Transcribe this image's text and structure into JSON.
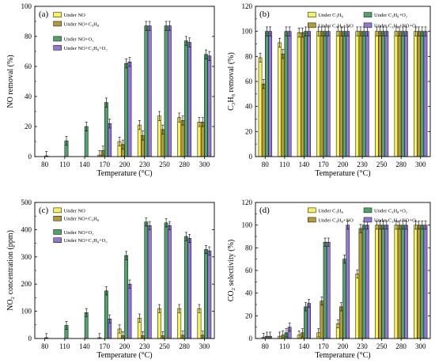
{
  "colors": {
    "yellow": "#f7f15a",
    "brown": "#b59a3a",
    "green": "#52a36b",
    "purple": "#9478d8"
  },
  "chart_data": [
    {
      "type": "bar",
      "letter": "(a)",
      "xlabel": "Temperature (°C)",
      "ylabel": "NO removal (%)",
      "ylim": [
        0,
        100
      ],
      "yticks": [
        "0",
        "20",
        "40",
        "60",
        "80",
        "100"
      ],
      "categories": [
        "80",
        "110",
        "140",
        "170",
        "200",
        "230",
        "250",
        "280",
        "300"
      ],
      "legend_position": "top-left",
      "series": [
        {
          "name": "Under NO",
          "color": "yellow",
          "values": [
            0,
            0,
            0,
            1,
            10,
            21,
            27,
            26,
            23
          ]
        },
        {
          "name": "Under NO+C₃H₈",
          "color": "brown",
          "values": [
            0,
            0,
            0,
            4,
            8,
            14,
            18,
            24,
            23
          ]
        },
        {
          "name": "Under NO+O₂",
          "color": "green",
          "values": [
            0.5,
            10.5,
            20,
            36,
            62,
            87,
            87,
            77,
            68
          ]
        },
        {
          "name": "Under NO+C₃H₈+O₂",
          "color": "purple",
          "values": [
            0,
            0,
            0,
            22,
            63,
            87,
            87,
            76,
            67
          ]
        }
      ]
    },
    {
      "type": "bar",
      "letter": "(b)",
      "xlabel": "Temperature (°C)",
      "ylabel": "C₃H₈ removal (%)",
      "ylim": [
        0,
        120
      ],
      "yticks": [
        "0",
        "20",
        "40",
        "60",
        "80",
        "100",
        "120"
      ],
      "categories": [
        "80",
        "110",
        "140",
        "170",
        "200",
        "230",
        "250",
        "280",
        "300"
      ],
      "legend_position": "top",
      "series": [
        {
          "name": "Under C₃H₈",
          "color": "yellow",
          "values": [
            79,
            91,
            99,
            100,
            100,
            100,
            100,
            100,
            100
          ]
        },
        {
          "name": "Under C₃H₈+NO",
          "color": "brown",
          "values": [
            58,
            82,
            99,
            100,
            100,
            100,
            100,
            100,
            100
          ]
        },
        {
          "name": "Under C₃H₈+O₂",
          "color": "green",
          "values": [
            100,
            100,
            100,
            100,
            100,
            100,
            100,
            100,
            100
          ]
        },
        {
          "name": "Under C₃H₈+NO+O₂",
          "color": "purple",
          "values": [
            100,
            100,
            100,
            100,
            100,
            100,
            100,
            100,
            100
          ]
        }
      ]
    },
    {
      "type": "bar",
      "letter": "(c)",
      "xlabel": "Temperature (°C)",
      "ylabel": "NO₂ concentration (ppm)",
      "ylim": [
        0,
        500
      ],
      "yticks": [
        "0",
        "100",
        "200",
        "300",
        "400",
        "500"
      ],
      "categories": [
        "80",
        "110",
        "140",
        "170",
        "200",
        "230",
        "250",
        "280",
        "300"
      ],
      "legend_position": "top-left",
      "series": [
        {
          "name": "Under NO",
          "color": "yellow",
          "values": [
            0,
            0,
            0,
            3,
            35,
            75,
            110,
            110,
            110
          ]
        },
        {
          "name": "Under NO+C₃H₈",
          "color": "brown",
          "values": [
            0,
            0,
            0,
            0,
            10,
            10,
            10,
            12,
            12
          ]
        },
        {
          "name": "Under NO+O₂",
          "color": "green",
          "values": [
            3,
            48,
            95,
            175,
            305,
            428,
            425,
            375,
            327
          ]
        },
        {
          "name": "Under NO+C₃H₈+O₂",
          "color": "purple",
          "values": [
            0,
            0,
            0,
            72,
            200,
            415,
            415,
            368,
            322
          ]
        }
      ]
    },
    {
      "type": "bar",
      "letter": "(d)",
      "xlabel": "Temperature (°C)",
      "ylabel": "CO₂ selectivity (%)",
      "ylim": [
        0,
        120
      ],
      "yticks": [
        "0",
        "20",
        "40",
        "60",
        "80",
        "100",
        "120"
      ],
      "categories": [
        "80",
        "110",
        "140",
        "170",
        "200",
        "230",
        "250",
        "280",
        "300"
      ],
      "legend_position": "top",
      "series": [
        {
          "name": "Under C₃H₈",
          "color": "yellow",
          "values": [
            0,
            2,
            3,
            5,
            13,
            57,
            100,
            100,
            100
          ]
        },
        {
          "name": "Under C₃H₈+NO",
          "color": "brown",
          "values": [
            1,
            3,
            5,
            33,
            28,
            97,
            100,
            100,
            100
          ]
        },
        {
          "name": "Under C₃H₈+O₂",
          "color": "green",
          "values": [
            2,
            5,
            28,
            85,
            70,
            100,
            100,
            100,
            100
          ]
        },
        {
          "name": "Under C₃H₈+NO+O₂",
          "color": "purple",
          "values": [
            2,
            10,
            31,
            85,
            100,
            100,
            100,
            100,
            100
          ]
        }
      ]
    }
  ]
}
